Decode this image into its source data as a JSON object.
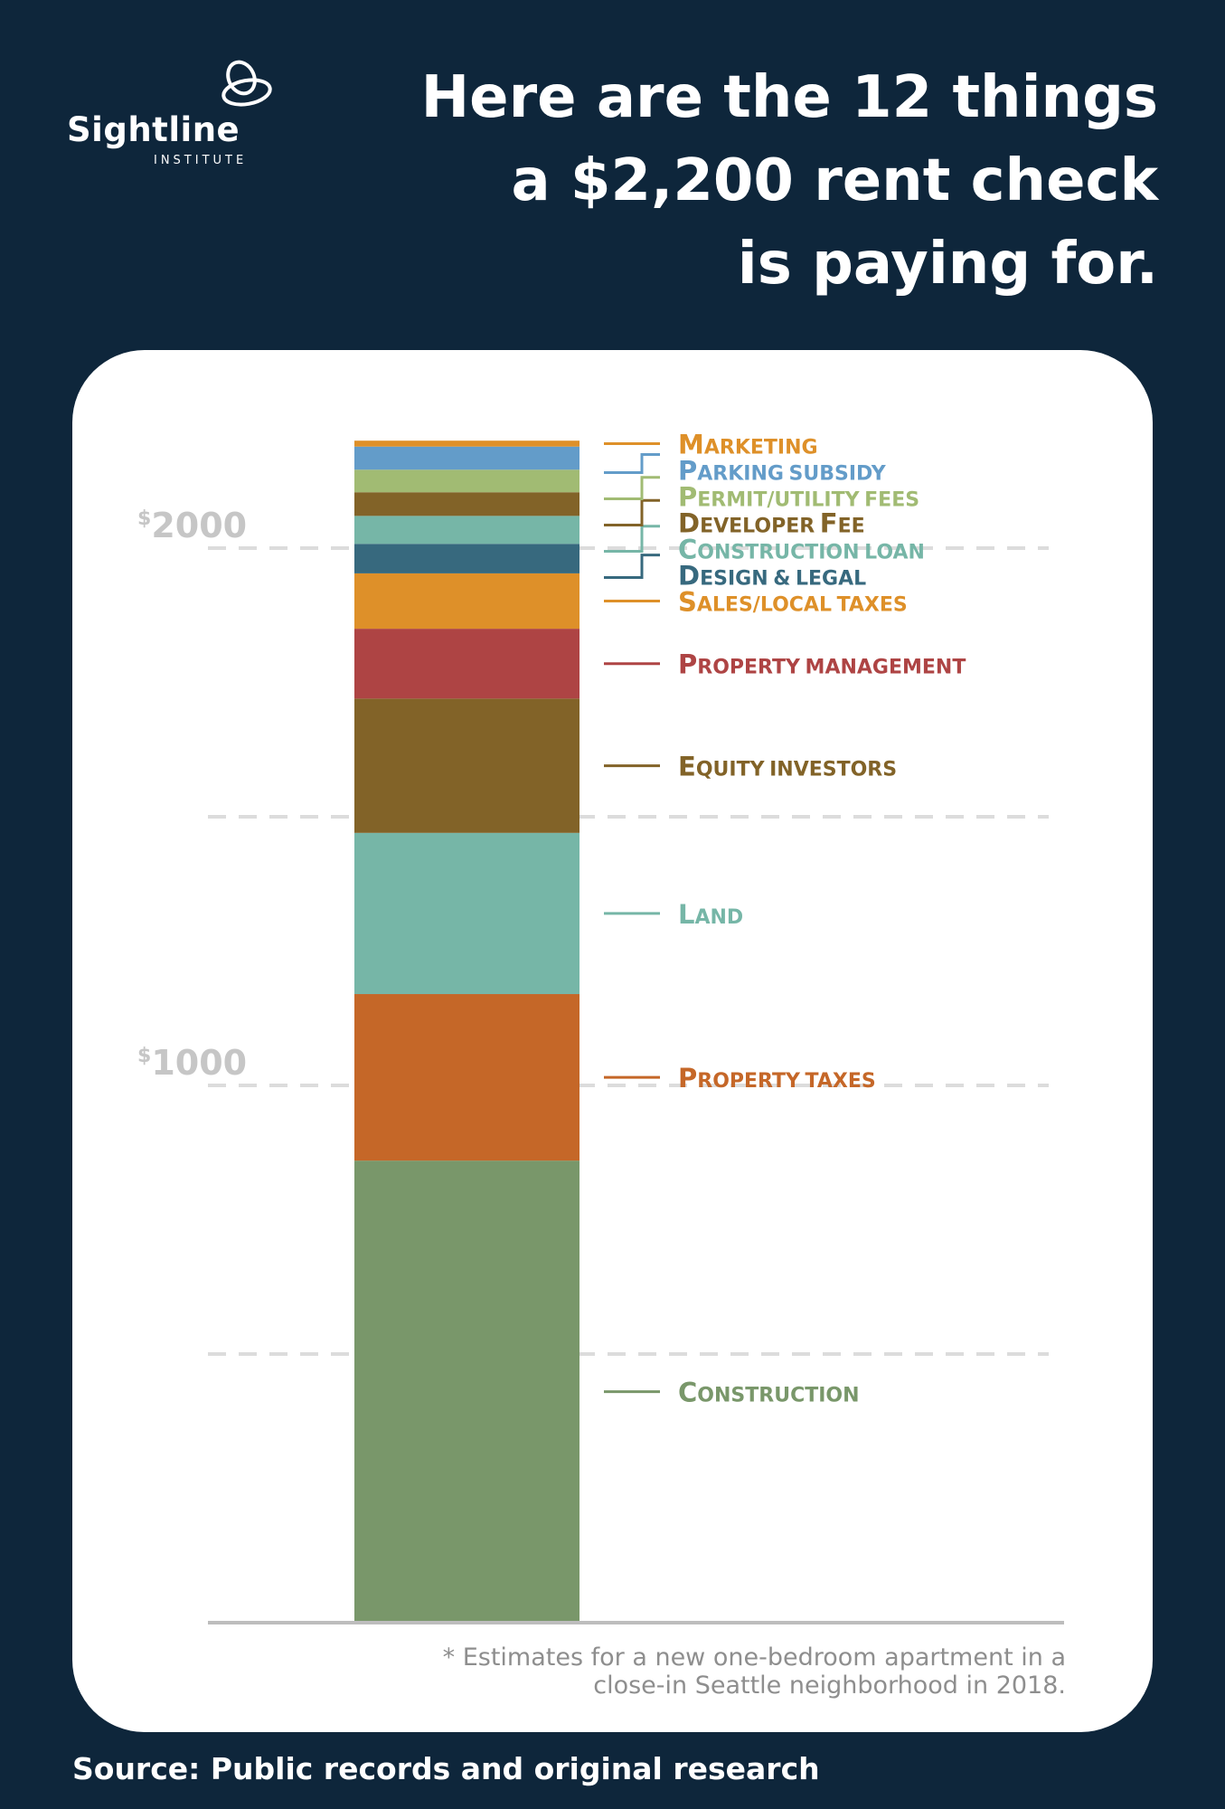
{
  "logo": {
    "name": "Sightline",
    "subtitle": "INSTITUTE",
    "icon": "sightline-loops-icon"
  },
  "headline": {
    "line1": "Here are the 12 things",
    "line2": "a $2,200 rent check",
    "line3": "is paying for."
  },
  "colors": {
    "background": "#0e263b",
    "card": "#ffffff",
    "gridline": "#dcdcdc",
    "tick_text": "#c6c6c6",
    "footnote": "#8e8e8e"
  },
  "chart_data": {
    "type": "bar",
    "stacked": true,
    "title": "Here are the 12 things a $2,200 rent check is paying for.",
    "xlabel": "",
    "ylabel": "",
    "ylim": [
      0,
      2200
    ],
    "y_ticks": [
      {
        "value": 2000,
        "prefix": "$",
        "label": "2000"
      },
      {
        "value": 1500,
        "prefix": "",
        "label": ""
      },
      {
        "value": 1000,
        "prefix": "$",
        "label": "1000"
      },
      {
        "value": 500,
        "prefix": "",
        "label": ""
      }
    ],
    "gridlines": [
      500,
      1000,
      1500,
      2000
    ],
    "grid": true,
    "legend": "right, labels beside each segment",
    "series": [
      {
        "name": "Construction",
        "value": 860,
        "color": "#79976a"
      },
      {
        "name": "Property taxes",
        "value": 310,
        "color": "#c56728"
      },
      {
        "name": "Land",
        "value": 300,
        "color": "#76b6a7"
      },
      {
        "name": "Equity investors",
        "value": 250,
        "color": "#826328"
      },
      {
        "name": "Property management",
        "value": 130,
        "color": "#ae4444"
      },
      {
        "name": "Sales/local taxes",
        "value": 103,
        "color": "#de9029"
      },
      {
        "name": "Design & legal",
        "value": 55,
        "color": "#37697e"
      },
      {
        "name": "Construction loan",
        "value": 52,
        "color": "#76b6a7"
      },
      {
        "name": "Developer Fee",
        "value": 44,
        "color": "#826328"
      },
      {
        "name": "Permit/utility fees",
        "value": 42,
        "color": "#a1bb73"
      },
      {
        "name": "Parking subsidy",
        "value": 43,
        "color": "#639cc9"
      },
      {
        "name": "Marketing",
        "value": 11,
        "color": "#de9029"
      }
    ]
  },
  "footnote": {
    "line1": "* Estimates for a new one-bedroom apartment in a",
    "line2": "close-in Seattle neighborhood in 2018."
  },
  "source": "Source: Public records and original research"
}
